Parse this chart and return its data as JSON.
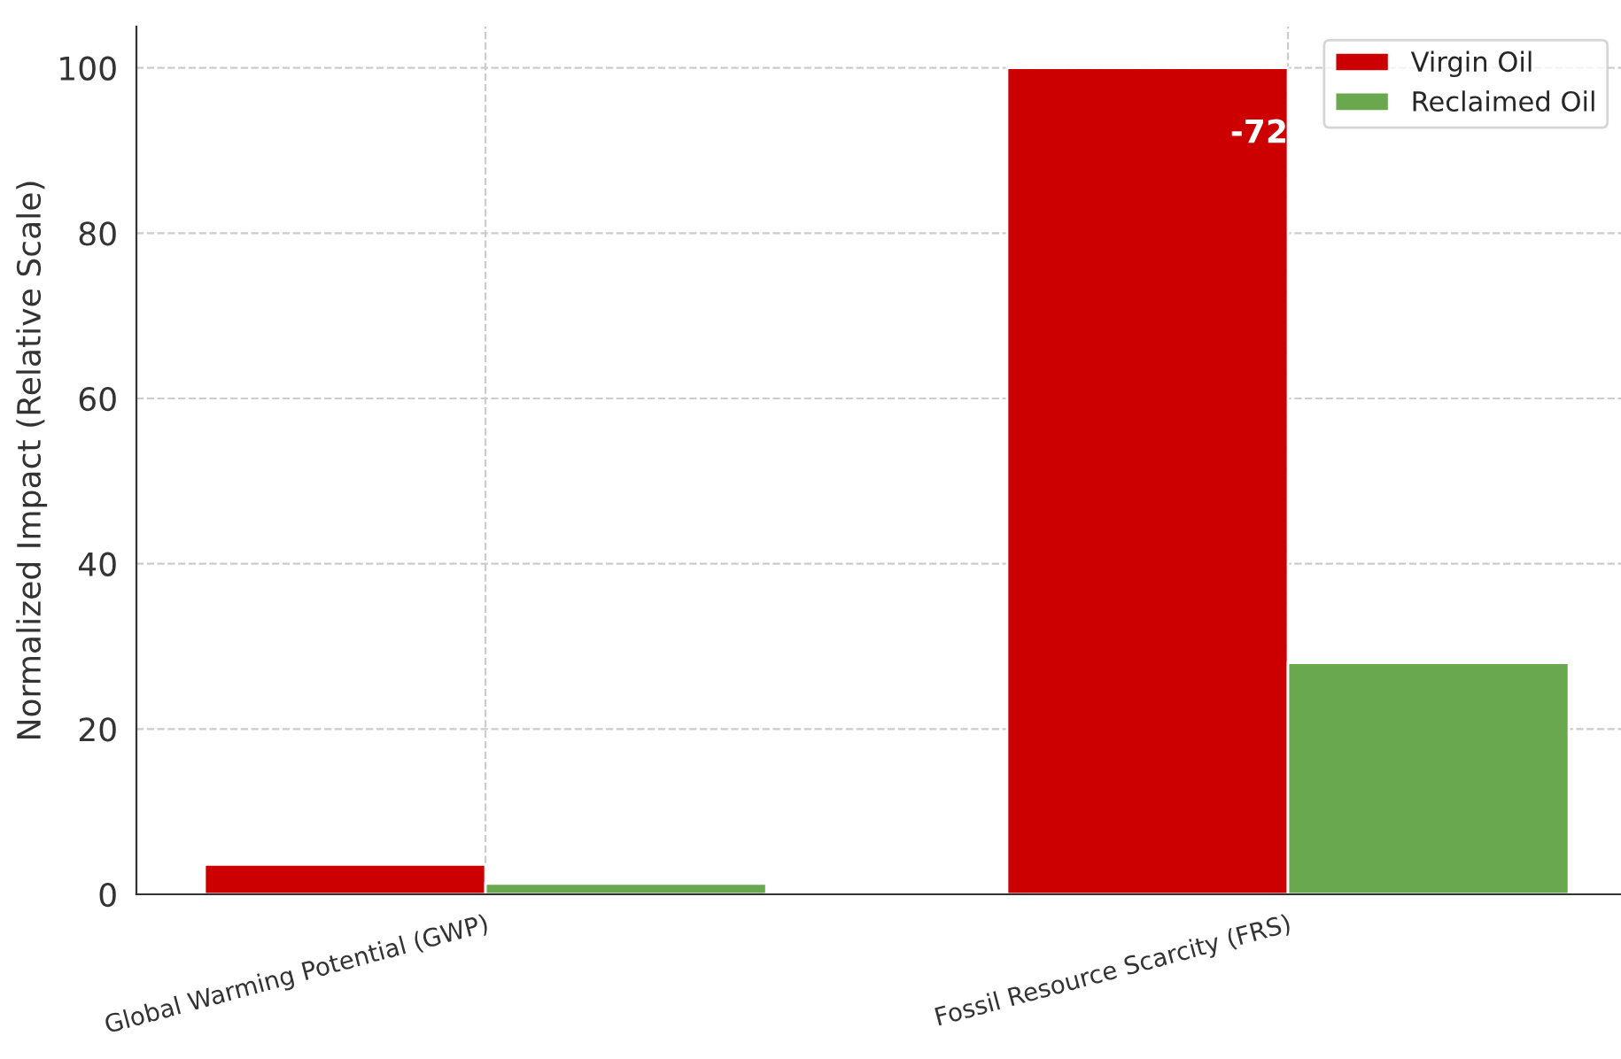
{
  "chart_data": {
    "type": "bar",
    "ylabel": "Normalized Impact (Relative Scale)",
    "categories": [
      "Global Warming Potential (GWP)",
      "Fossil Resource Scarcity (FRS)"
    ],
    "series": [
      {
        "name": "Virgin Oil",
        "color": "#cc0000",
        "values": [
          3.6,
          100
        ]
      },
      {
        "name": "Reclaimed Oil",
        "color": "#6aa84f",
        "values": [
          1.3,
          28
        ]
      }
    ],
    "ylim": [
      0,
      105
    ],
    "yticks": [
      0,
      20,
      40,
      60,
      80,
      100
    ],
    "grid": true,
    "legend": "top right",
    "annotations": [
      {
        "text": "-72",
        "x": "Fossil Resource Scarcity (FRS)",
        "y": 92
      }
    ]
  }
}
